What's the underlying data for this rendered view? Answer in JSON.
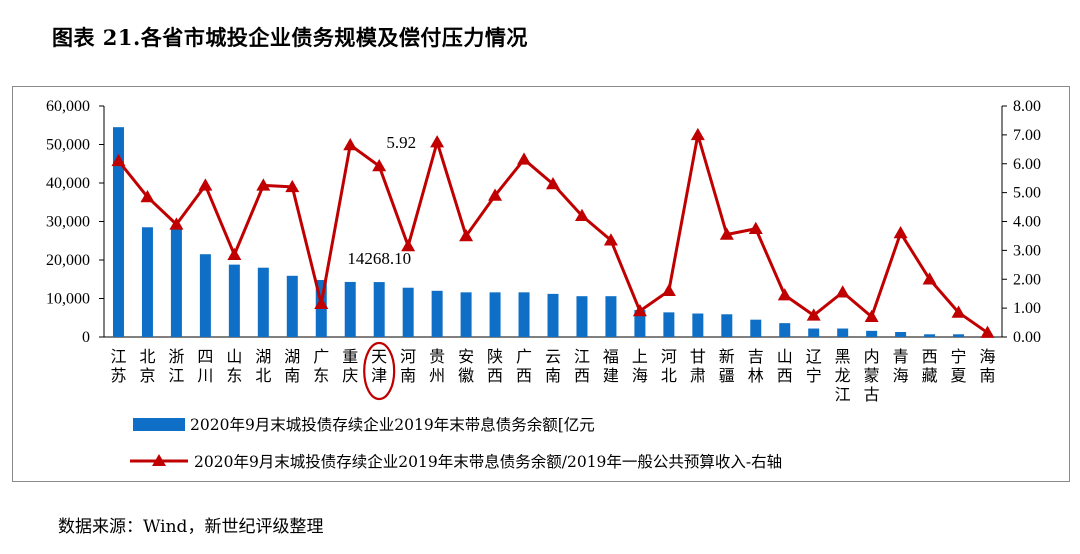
{
  "figure": {
    "title": "图表 21.各省市城投企业债务规模及偿付压力情况",
    "source": "数据来源：Wind，新世纪评级整理"
  },
  "chart_data": {
    "type": "bar+line",
    "categories": [
      "江苏",
      "北京",
      "浙江",
      "四川",
      "山东",
      "湖北",
      "湖南",
      "广东",
      "重庆",
      "天津",
      "河南",
      "贵州",
      "安徽",
      "陕西",
      "广西",
      "云南",
      "江西",
      "福建",
      "上海",
      "河北",
      "甘肃",
      "新疆",
      "吉林",
      "山西",
      "辽宁",
      "黑龙江",
      "内蒙古",
      "青海",
      "西藏",
      "宁夏",
      "海南"
    ],
    "series": [
      {
        "name": "2020年9月末城投债存续企业2019年末带息债务余额[亿元",
        "type": "bar",
        "axis": "left",
        "color": "#0f6fc6",
        "values": [
          54500,
          28500,
          28000,
          21500,
          18800,
          18000,
          15900,
          14800,
          14300,
          14268.1,
          12800,
          12000,
          11600,
          11600,
          11600,
          11200,
          10600,
          10600,
          7000,
          6400,
          6100,
          5900,
          4500,
          3600,
          2200,
          2200,
          1600,
          1300,
          700,
          700,
          300
        ]
      },
      {
        "name": "2020年9月末城投债存续企业2019年末带息债务余额/2019年一般公共预算收入-右轴",
        "type": "line",
        "axis": "right",
        "color": "#c00000",
        "values": [
          6.1,
          4.85,
          3.9,
          5.25,
          2.85,
          5.25,
          5.2,
          1.15,
          6.65,
          5.92,
          3.15,
          6.75,
          3.5,
          4.9,
          6.15,
          5.3,
          4.2,
          3.35,
          0.9,
          1.6,
          7.0,
          3.55,
          3.75,
          1.45,
          0.75,
          1.55,
          0.7,
          3.6,
          2.0,
          0.85,
          0.15
        ]
      }
    ],
    "yleft": {
      "ylim": [
        0,
        60000
      ],
      "ticks": [
        "0",
        "10,000",
        "20,000",
        "30,000",
        "40,000",
        "50,000",
        "60,000"
      ]
    },
    "yright": {
      "ylim": [
        0,
        8
      ],
      "ticks": [
        "0.00",
        "1.00",
        "2.00",
        "3.00",
        "4.00",
        "5.00",
        "6.00",
        "7.00",
        "8.00"
      ]
    },
    "annotations": [
      {
        "text": "14268.10",
        "category": "天津",
        "series": 0
      },
      {
        "text": "5.92",
        "category": "天津",
        "series": 1
      }
    ],
    "highlight_category": "天津",
    "legend_position": "bottom",
    "grid": false
  }
}
